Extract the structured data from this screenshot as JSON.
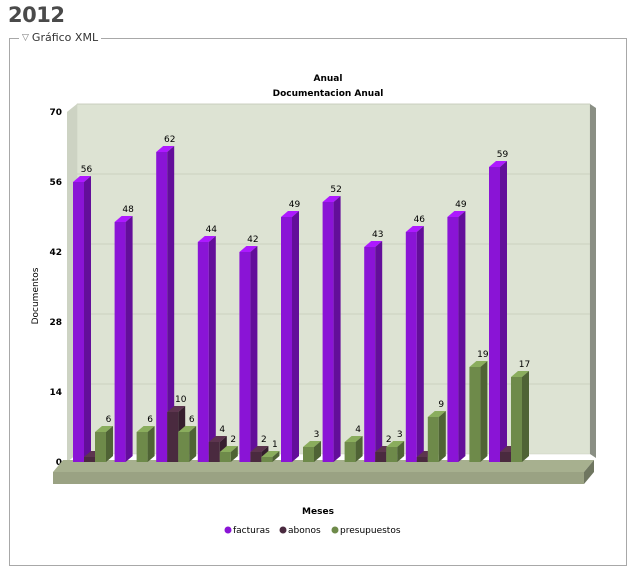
{
  "page": {
    "year": "2012",
    "section_label": "Gráfico XML"
  },
  "chart_data": {
    "type": "bar",
    "title": "Anual",
    "subtitle": "Documentacion Anual",
    "xlabel": "Meses",
    "ylabel": "Documentos",
    "ylim": [
      0,
      70
    ],
    "yticks": [
      0,
      14,
      28,
      42,
      56,
      70
    ],
    "categories": [
      "",
      "",
      "",
      "",
      "",
      "",
      "",
      "",
      "",
      "",
      "",
      ""
    ],
    "series": [
      {
        "name": "facturas",
        "color": "#8a14d6",
        "values": [
          56,
          48,
          62,
          44,
          42,
          49,
          52,
          43,
          46,
          49,
          59,
          null
        ]
      },
      {
        "name": "abonos",
        "color": "#4a2a3f",
        "values": [
          1,
          null,
          10,
          4,
          2,
          null,
          null,
          2,
          1,
          null,
          2,
          null
        ]
      },
      {
        "name": "presupuestos",
        "color": "#6e8a4a",
        "values": [
          6,
          6,
          6,
          2,
          1,
          3,
          4,
          3,
          9,
          19,
          17,
          null
        ]
      }
    ],
    "grid": true,
    "legend_position": "bottom",
    "background": "#dde3d3"
  }
}
